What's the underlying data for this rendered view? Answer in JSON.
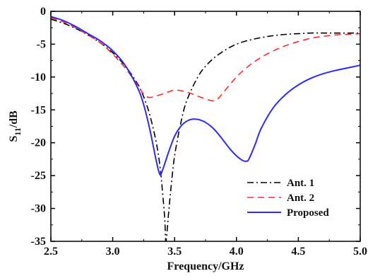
{
  "chart_data": {
    "type": "line",
    "xlabel": "Frequency/GHz",
    "ylabel_main": "S",
    "ylabel_sub": "11",
    "ylabel_unit": "/dB",
    "xlim": [
      2.5,
      5.0
    ],
    "ylim": [
      -35,
      0
    ],
    "x_ticks": [
      2.5,
      3.0,
      3.5,
      4.0,
      4.5,
      5.0
    ],
    "x_tick_labels": [
      "2.5",
      "3.0",
      "3.5",
      "4.0",
      "4.5",
      "5.0"
    ],
    "y_ticks": [
      0,
      -5,
      -10,
      -15,
      -20,
      -25,
      -30,
      -35
    ],
    "y_tick_labels": [
      "0",
      "-5",
      "-10",
      "-15",
      "-20",
      "-25",
      "-30",
      "-35"
    ],
    "grid": false,
    "legend_position": "bottom-right",
    "series": [
      {
        "name": "Ant. 1",
        "color": "#000000",
        "style": "dash-dot",
        "x": [
          2.5,
          2.6,
          2.7,
          2.8,
          2.9,
          3.0,
          3.1,
          3.2,
          3.25,
          3.3,
          3.35,
          3.38,
          3.4,
          3.42,
          3.43,
          3.45,
          3.47,
          3.5,
          3.55,
          3.6,
          3.7,
          3.8,
          3.9,
          4.0,
          4.1,
          4.2,
          4.3,
          4.4,
          4.5,
          4.6,
          4.7,
          4.8,
          4.9,
          5.0
        ],
        "y": [
          -1.2,
          -1.8,
          -2.6,
          -3.6,
          -4.8,
          -6.3,
          -8.3,
          -11.0,
          -13.0,
          -15.8,
          -19.8,
          -23.3,
          -27.0,
          -31.5,
          -35.0,
          -31.0,
          -27.0,
          -22.0,
          -17.0,
          -13.5,
          -9.6,
          -7.4,
          -6.0,
          -5.0,
          -4.4,
          -4.0,
          -3.7,
          -3.5,
          -3.4,
          -3.3,
          -3.3,
          -3.3,
          -3.3,
          -3.3
        ]
      },
      {
        "name": "Ant. 2",
        "color": "#ff2a2a",
        "style": "dashed",
        "x": [
          2.5,
          2.6,
          2.7,
          2.8,
          2.9,
          3.0,
          3.1,
          3.2,
          3.25,
          3.3,
          3.4,
          3.5,
          3.6,
          3.7,
          3.8,
          3.85,
          3.9,
          4.0,
          4.1,
          4.2,
          4.3,
          4.4,
          4.5,
          4.6,
          4.7,
          4.8,
          4.9,
          5.0
        ],
        "y": [
          -1.0,
          -1.6,
          -2.5,
          -3.6,
          -4.8,
          -6.5,
          -8.6,
          -11.2,
          -12.6,
          -13.1,
          -12.6,
          -12.0,
          -12.3,
          -13.0,
          -13.6,
          -13.3,
          -12.2,
          -10.0,
          -8.3,
          -7.0,
          -6.0,
          -5.2,
          -4.6,
          -4.1,
          -3.8,
          -3.6,
          -3.5,
          -3.4
        ]
      },
      {
        "name": "Proposed",
        "color": "#2b2bff",
        "style": "solid",
        "x": [
          2.5,
          2.6,
          2.7,
          2.8,
          2.9,
          3.0,
          3.1,
          3.2,
          3.25,
          3.3,
          3.35,
          3.38,
          3.4,
          3.45,
          3.5,
          3.55,
          3.6,
          3.65,
          3.7,
          3.75,
          3.8,
          3.85,
          3.9,
          3.95,
          4.0,
          4.05,
          4.08,
          4.1,
          4.15,
          4.2,
          4.3,
          4.4,
          4.5,
          4.6,
          4.7,
          4.8,
          4.9,
          5.0
        ],
        "y": [
          -0.8,
          -1.4,
          -2.3,
          -3.4,
          -4.5,
          -6.0,
          -8.2,
          -11.6,
          -14.2,
          -18.0,
          -22.6,
          -24.8,
          -24.3,
          -21.5,
          -19.0,
          -17.5,
          -16.7,
          -16.4,
          -16.5,
          -16.9,
          -17.6,
          -18.6,
          -19.8,
          -21.0,
          -22.0,
          -22.7,
          -22.8,
          -22.5,
          -20.3,
          -17.8,
          -14.6,
          -12.6,
          -11.2,
          -10.2,
          -9.5,
          -9.0,
          -8.6,
          -8.2
        ]
      }
    ]
  }
}
